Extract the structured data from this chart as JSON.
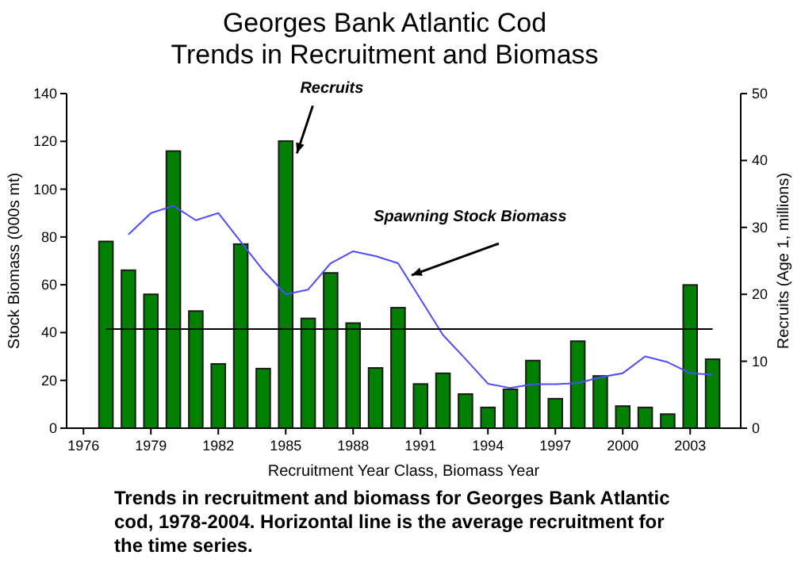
{
  "chart_data": {
    "type": "bar",
    "title": "Georges Bank Atlantic Cod\nTrends in Recruitment and Biomass",
    "xlabel": "Recruitment Year Class, Biomass Year",
    "ylabel": "Stock Biomass (000s mt)",
    "y2label": "Recruits (Age 1, millions)",
    "x": [
      1977,
      1978,
      1979,
      1980,
      1981,
      1982,
      1983,
      1984,
      1985,
      1986,
      1987,
      1988,
      1989,
      1990,
      1991,
      1992,
      1993,
      1994,
      1995,
      1996,
      1997,
      1998,
      1999,
      2000,
      2001,
      2002,
      2003,
      2004
    ],
    "series": [
      {
        "axis": "y2",
        "color": "#008000",
        "values": [
          27.9,
          23.6,
          20,
          41.4,
          17.5,
          9.6,
          27.5,
          8.9,
          42.9,
          16.4,
          23.2,
          15.7,
          9.0,
          18,
          6.6,
          8.2,
          5.1,
          3.1,
          5.8,
          10.1,
          4.4,
          13,
          7.8,
          3.3,
          3.1,
          2.1,
          21.4,
          10.3
        ]
      },
      {
        "type": "line",
        "color": "#4d4dff",
        "x": [
          1978,
          1979,
          1980,
          1981,
          1982,
          1983,
          1984,
          1985,
          1986,
          1987,
          1988,
          1989,
          1990,
          1991,
          1992,
          1993,
          1994,
          1995,
          1996,
          1997,
          1998,
          1999,
          2000,
          2001,
          2002,
          2003,
          2004
        ],
        "values": [
          81,
          90,
          93,
          87,
          90,
          78,
          66,
          56,
          58,
          69,
          74,
          72,
          69,
          54,
          39,
          29,
          18.6,
          16.8,
          18.4,
          18.4,
          18.8,
          21.3,
          23,
          30,
          27.6,
          23,
          22.4
        ]
      }
    ],
    "xlim": [
      1975.25,
      2005.25
    ],
    "xticks": [
      1976,
      1979,
      1982,
      1985,
      1988,
      1991,
      1994,
      1997,
      2000,
      2003
    ],
    "ylim": [
      0,
      140
    ],
    "yticks": [
      0,
      20,
      40,
      60,
      80,
      100,
      120,
      140
    ],
    "y2lim": [
      0,
      50
    ],
    "y2ticks": [
      0,
      10,
      20,
      30,
      40,
      50
    ],
    "ref_lines": [
      {
        "axis": "y2",
        "value": 14.8,
        "color": "#000000"
      }
    ],
    "annotations": [
      {
        "text": "Recruits",
        "x": 1985.5,
        "y": 115
      },
      {
        "text": "Spawning Stock Biomass",
        "x": 1990.6,
        "y": 64
      },
      "Trends in recruitment and biomass for Georges Bank Atlantic cod, 1978-2004.  Horizontal line is the average recruitment for the time series."
    ]
  }
}
